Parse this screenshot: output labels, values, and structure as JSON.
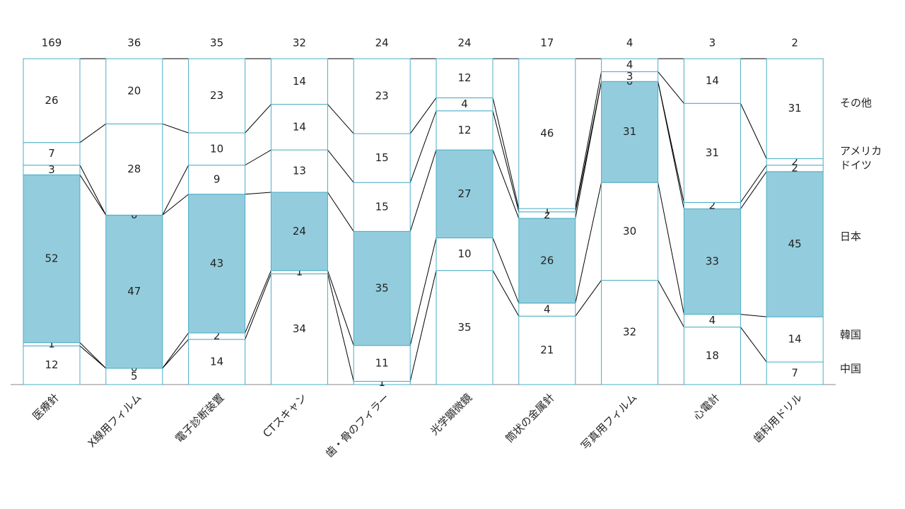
{
  "chart_data": {
    "type": "stacked100",
    "categories": [
      "医療針",
      "X線用フィルム",
      "電子診断装置",
      "CTスキャン",
      "歯・骨のフィラー",
      "光学顕微鏡",
      "筒状の金属針",
      "写真用フィルム",
      "心電計",
      "歯科用ドリル"
    ],
    "totals": [
      169,
      36,
      35,
      32,
      24,
      24,
      17,
      4,
      3,
      2
    ],
    "series": [
      {
        "name": "中国",
        "color": "#ffffff",
        "values": [
          12,
          5,
          14,
          34,
          1,
          35,
          21,
          32,
          18,
          7
        ]
      },
      {
        "name": "韓国",
        "color": "#ffffff",
        "values": [
          1,
          0,
          2,
          1,
          11,
          10,
          4,
          30,
          4,
          14
        ]
      },
      {
        "name": "日本",
        "color": "#93cddd",
        "values": [
          52,
          47,
          43,
          24,
          35,
          27,
          26,
          31,
          33,
          45
        ]
      },
      {
        "name": "ドイツ",
        "color": "#ffffff",
        "values": [
          3,
          0,
          9,
          13,
          15,
          12,
          2,
          0,
          2,
          2
        ]
      },
      {
        "name": "アメリカ",
        "color": "#ffffff",
        "values": [
          7,
          28,
          10,
          14,
          15,
          4,
          1,
          3,
          31,
          2
        ]
      },
      {
        "name": "その他",
        "color": "#ffffff",
        "values": [
          26,
          20,
          23,
          14,
          23,
          12,
          46,
          4,
          14,
          31
        ]
      }
    ]
  }
}
